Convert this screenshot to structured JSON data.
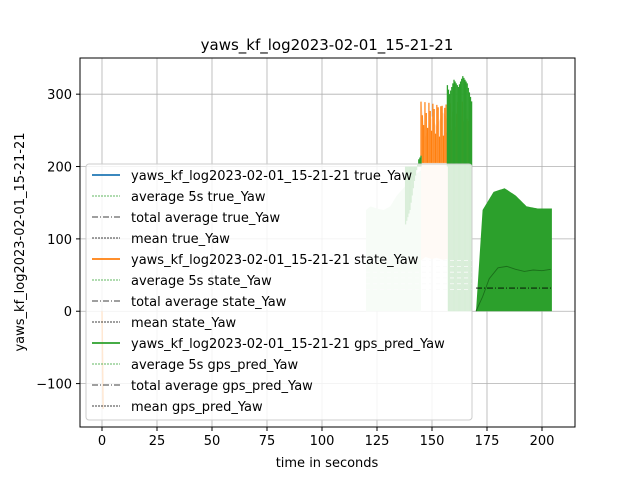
{
  "chart_data": {
    "type": "line",
    "title": "yaws_kf_log2023-02-01_15-21-21",
    "xlabel": "time in seconds",
    "ylabel": "yaws_kf_log2023-02-01_15-21-21",
    "xlim": [
      -10,
      215
    ],
    "ylim": [
      -160,
      350
    ],
    "xticks": [
      0,
      25,
      50,
      75,
      100,
      125,
      150,
      175,
      200
    ],
    "yticks": [
      -100,
      0,
      100,
      200,
      300
    ],
    "grid": true,
    "legend_position": "lower-left",
    "legend": [
      "yaws_kf_log2023-02-01_15-21-21 true_Yaw",
      "average 5s true_Yaw",
      "total average true_Yaw",
      "mean true_Yaw",
      "yaws_kf_log2023-02-01_15-21-21 state_Yaw",
      "average 5s state_Yaw",
      "total average state_Yaw",
      "mean state_Yaw",
      "yaws_kf_log2023-02-01_15-21-21 gps_pred_Yaw",
      "average 5s gps_pred_Yaw",
      "total average gps_pred_Yaw",
      "mean gps_pred_Yaw"
    ],
    "colors": {
      "true_Yaw": "#1f77b4",
      "state_Yaw": "#ff7f0e",
      "gps_pred_Yaw": "#2ca02c",
      "state_Yaw_light": "#ffe3cc",
      "gps_pred_Yaw_light": "#d4ecd4"
    },
    "series": [
      {
        "name": "yaws_kf_log2023-02-01_15-21-21 true_Yaw",
        "x": [
          0,
          0.5
        ],
        "y": [
          0,
          -135
        ]
      },
      {
        "name": "yaws_kf_log2023-02-01_15-21-21 state_Yaw",
        "band_x": [
          145,
          147,
          150,
          152,
          155,
          158,
          160,
          162,
          165,
          167.5
        ],
        "band_high": [
          292,
          240,
          270,
          255,
          275,
          260,
          282,
          265,
          285,
          270
        ],
        "band_low": [
          70,
          75,
          72,
          74,
          71,
          73,
          70,
          72,
          74,
          70
        ]
      },
      {
        "name": "yaws_kf_log2023-02-01_15-21-21 gps_pred_Yaw",
        "x": [
          138,
          140,
          142,
          144,
          146,
          148,
          150,
          152,
          154,
          156,
          158,
          160,
          162,
          164,
          166,
          168
        ],
        "y": [
          120,
          140,
          180,
          210,
          220,
          240,
          280,
          300,
          315,
          325,
          300,
          320,
          310,
          325,
          315,
          290
        ],
        "block_x": [
          173,
          178,
          183,
          188,
          193,
          198,
          204
        ],
        "block_high": [
          140,
          165,
          170,
          160,
          145,
          142,
          142
        ]
      },
      {
        "name": "average 5s gps_pred_Yaw",
        "x": [
          170,
          173,
          176,
          180,
          184,
          188,
          192,
          196,
          200,
          204
        ],
        "y": [
          0,
          20,
          45,
          60,
          62,
          58,
          55,
          57,
          56,
          58
        ]
      },
      {
        "name": "total average gps_pred_Yaw",
        "x": [
          170,
          205
        ],
        "y": [
          32,
          32
        ]
      }
    ]
  }
}
